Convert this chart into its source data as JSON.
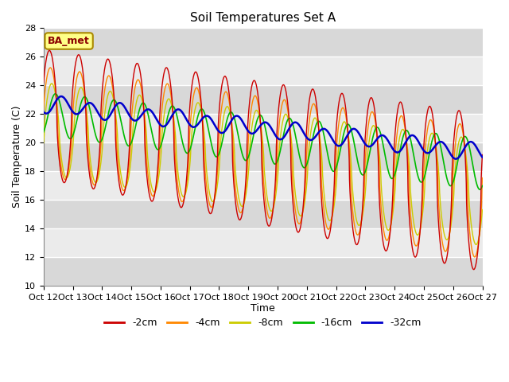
{
  "title": "Soil Temperatures Set A",
  "xlabel": "Time",
  "ylabel": "Soil Temperature (C)",
  "ylim": [
    10,
    28
  ],
  "colors": {
    "-2cm": "#cc0000",
    "-4cm": "#ff8800",
    "-8cm": "#cccc00",
    "-16cm": "#00bb00",
    "-32cm": "#0000cc"
  },
  "legend_labels": [
    "-2cm",
    "-4cm",
    "-8cm",
    "-16cm",
    "-32cm"
  ],
  "annotation_text": "BA_met",
  "background_color": "#ffffff",
  "plot_bg_light": "#ebebeb",
  "plot_bg_dark": "#d8d8d8",
  "grid_color": "#ffffff",
  "title_fontsize": 11,
  "axis_label_fontsize": 9,
  "tick_fontsize": 8
}
